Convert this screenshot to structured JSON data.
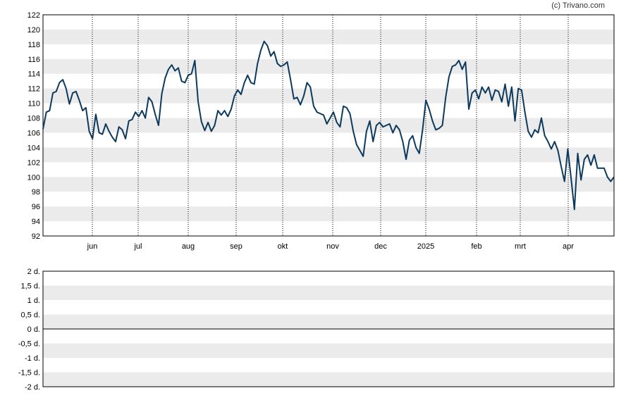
{
  "copyright": "(c) Trivano.com",
  "colors": {
    "line": "#0d3a5c",
    "band": "#ebebeb",
    "frame": "#000000",
    "gridline_vertical": "#000000",
    "zero_line": "#000000"
  },
  "chart_data": [
    {
      "type": "line",
      "title": "",
      "xlabel": "",
      "ylabel": "",
      "ylim": [
        92,
        122
      ],
      "y_ticks": [
        "92",
        "94",
        "96",
        "98",
        "100",
        "102",
        "104",
        "106",
        "108",
        "110",
        "112",
        "114",
        "116",
        "118",
        "120",
        "122"
      ],
      "x_ticks": [
        "jun",
        "jul",
        "aug",
        "sep",
        "okt",
        "nov",
        "dec",
        "2025",
        "feb",
        "mrt",
        "apr"
      ],
      "grid": "alternating horizontal bands, dotted vertical lines at month starts",
      "series": [
        {
          "values": [
            106.5,
            108.8,
            109.0,
            111.4,
            111.6,
            112.8,
            113.2,
            112.0,
            109.9,
            111.4,
            111.6,
            110.4,
            109.0,
            109.4,
            106.2,
            105.2,
            108.5,
            106.0,
            105.8,
            107.2,
            106.2,
            105.4,
            104.8,
            106.8,
            106.4,
            105.2,
            107.6,
            107.8,
            108.8,
            108.2,
            109.0,
            108.0,
            110.8,
            110.2,
            108.5,
            107.0,
            111.3,
            113.4,
            114.6,
            115.2,
            114.4,
            114.8,
            113.0,
            112.8,
            113.8,
            114.0,
            115.8,
            110.2,
            107.5,
            106.3,
            107.4,
            106.2,
            107.0,
            109.0,
            108.4,
            109.0,
            108.2,
            109.2,
            111.0,
            111.8,
            111.2,
            112.8,
            113.8,
            112.8,
            112.6,
            115.4,
            117.2,
            118.4,
            117.8,
            116.4,
            117.0,
            115.4,
            115.0,
            115.2,
            115.6,
            113.2,
            110.6,
            110.8,
            109.8,
            111.0,
            112.8,
            112.2,
            109.6,
            108.8,
            108.6,
            108.4,
            107.2,
            108.0,
            108.8,
            107.4,
            106.8,
            109.6,
            109.4,
            108.6,
            106.2,
            104.4,
            103.6,
            102.8,
            106.2,
            107.6,
            104.8,
            107.0,
            107.4,
            106.8,
            107.0,
            107.2,
            106.0,
            107.0,
            106.4,
            104.8,
            102.4,
            105.0,
            105.6,
            104.0,
            103.2,
            106.4,
            110.4,
            109.2,
            107.6,
            106.4,
            106.6,
            107.0,
            110.8,
            113.6,
            115.0,
            115.2,
            115.8,
            114.6,
            115.6,
            109.2,
            111.4,
            111.8,
            110.6,
            112.2,
            111.4,
            112.2,
            110.4,
            111.8,
            111.6,
            110.2,
            112.6,
            109.6,
            112.2,
            107.6,
            112.0,
            111.8,
            108.8,
            106.2,
            105.4,
            106.4,
            106.0,
            108.0,
            105.6,
            104.8,
            103.8,
            104.8,
            103.6,
            101.4,
            99.4,
            103.8,
            99.8,
            95.6,
            103.2,
            99.6,
            102.4,
            103.0,
            101.6,
            103.0,
            101.2,
            101.2,
            101.2,
            100.0,
            99.4,
            100.0
          ]
        }
      ]
    },
    {
      "type": "bar",
      "title": "",
      "xlabel": "",
      "ylabel": "",
      "ylim": [
        -2,
        2
      ],
      "y_ticks": [
        "2 d.",
        "1,5 d.",
        "1 d.",
        "0,5 d.",
        "0 d.",
        "-0,5 d.",
        "-1 d.",
        "-1,5 d.",
        "-2 d."
      ],
      "values": [],
      "grid": "alternating horizontal bands, solid line at 0"
    }
  ]
}
